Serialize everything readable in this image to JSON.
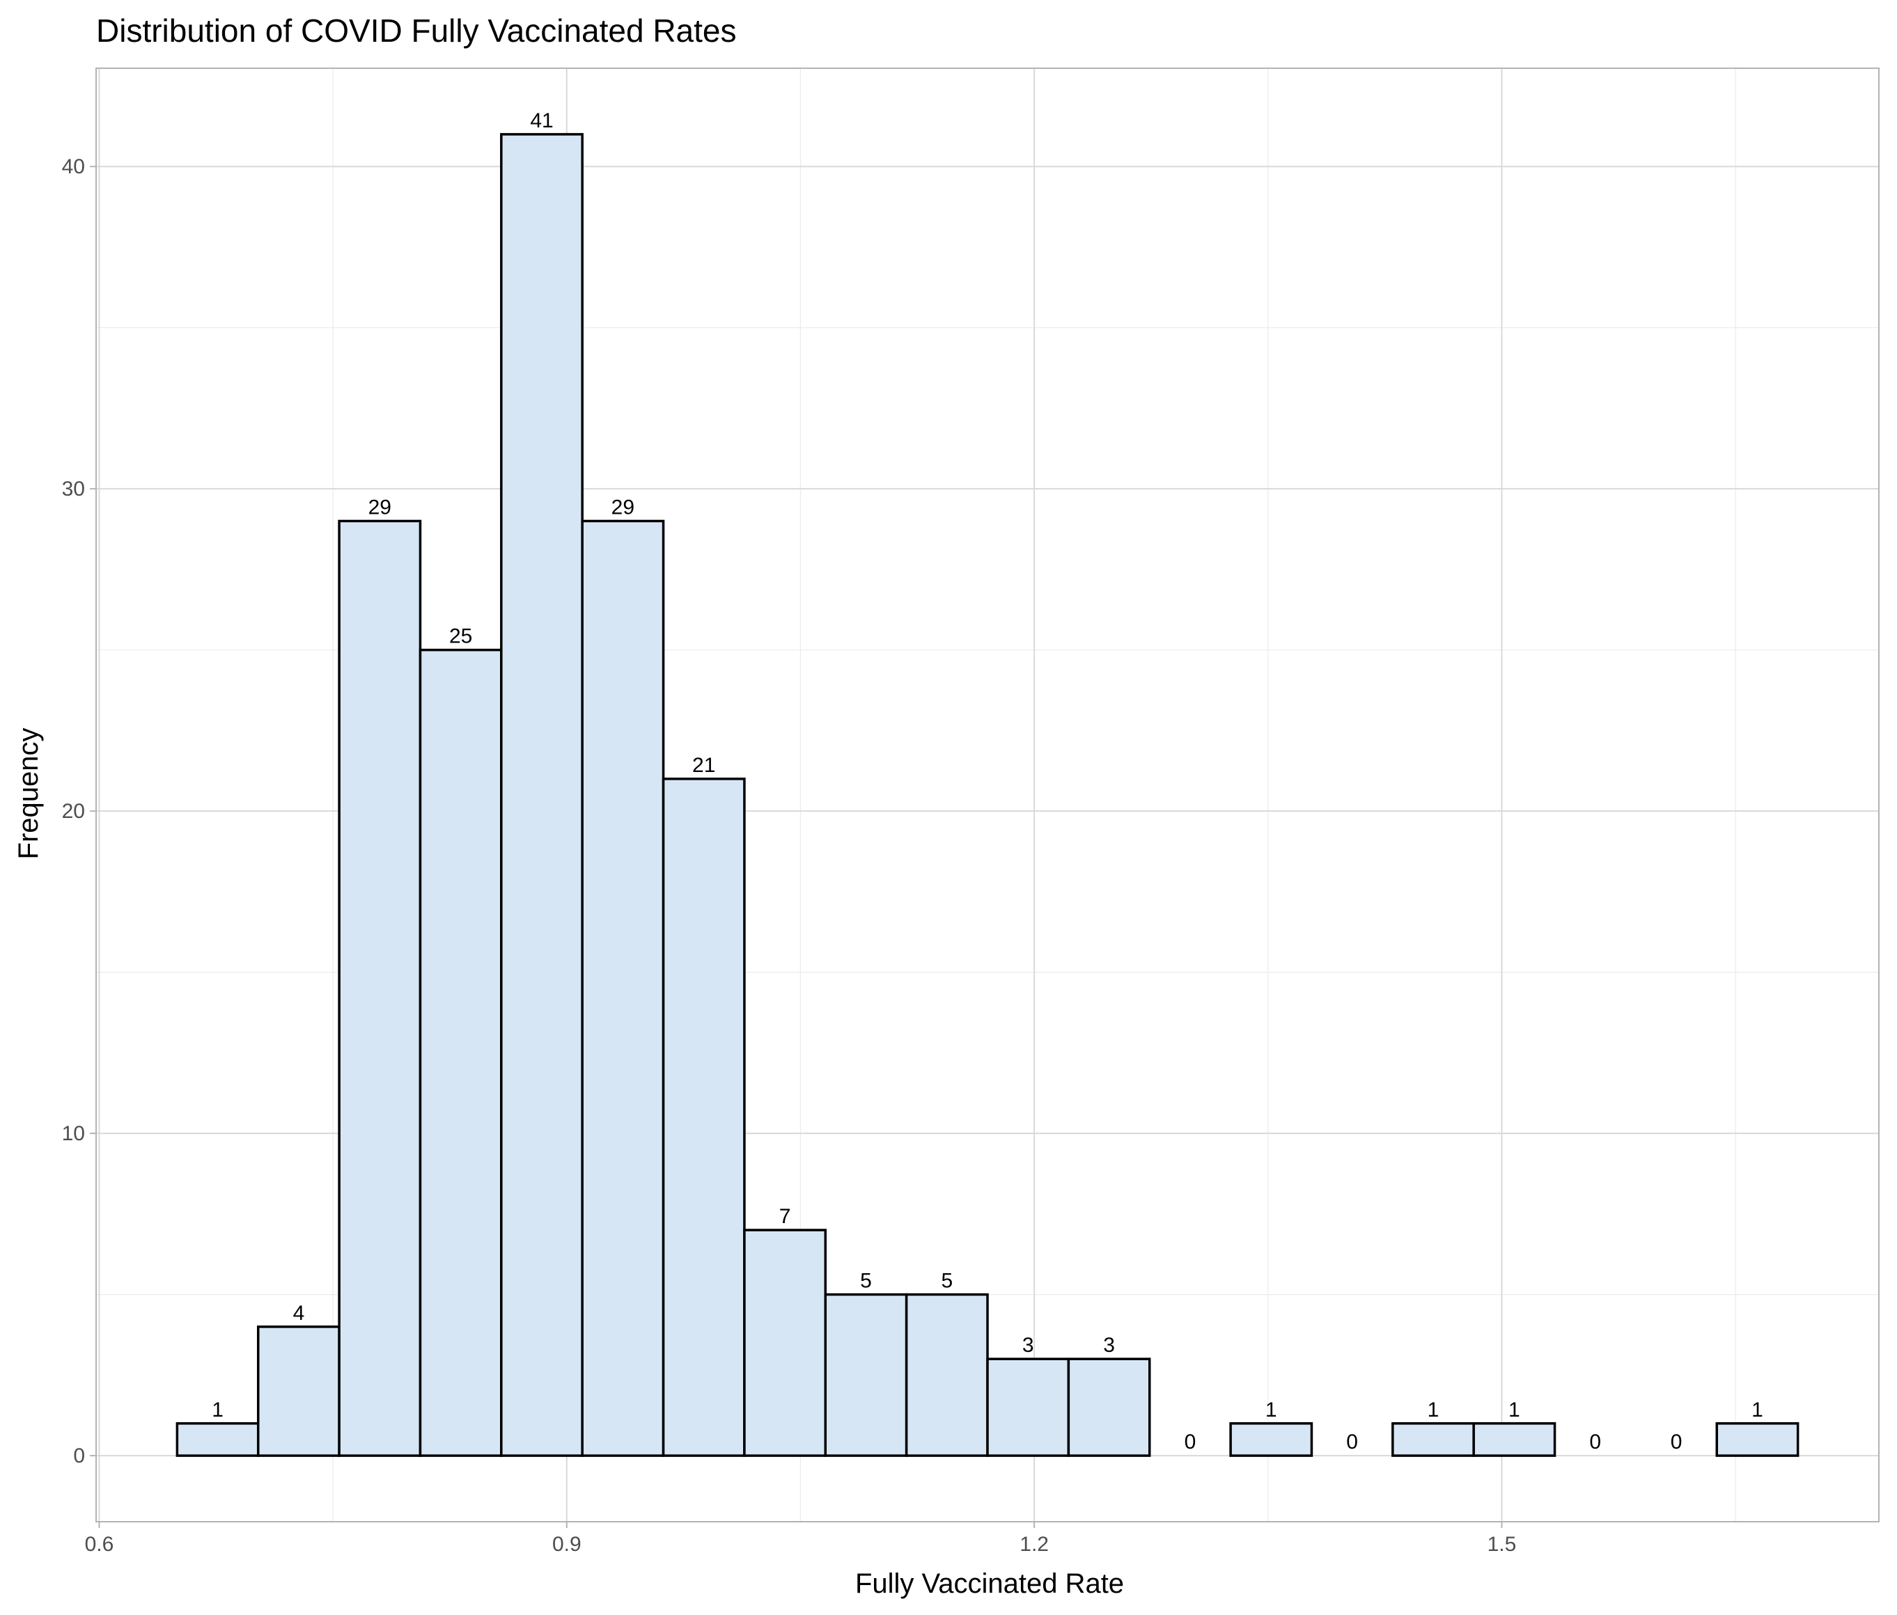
{
  "chart_data": {
    "type": "bar",
    "title": "Distribution of COVID Fully Vaccinated Rates",
    "xlabel": "Fully Vaccinated Rate",
    "ylabel": "Frequency",
    "bin_width": 0.052,
    "bins": [
      {
        "x0": 0.65,
        "x1": 0.702,
        "count": 1
      },
      {
        "x0": 0.702,
        "x1": 0.754,
        "count": 4
      },
      {
        "x0": 0.754,
        "x1": 0.806,
        "count": 29
      },
      {
        "x0": 0.806,
        "x1": 0.858,
        "count": 25
      },
      {
        "x0": 0.858,
        "x1": 0.91,
        "count": 41
      },
      {
        "x0": 0.91,
        "x1": 0.962,
        "count": 29
      },
      {
        "x0": 0.962,
        "x1": 1.014,
        "count": 21
      },
      {
        "x0": 1.014,
        "x1": 1.066,
        "count": 7
      },
      {
        "x0": 1.066,
        "x1": 1.118,
        "count": 5
      },
      {
        "x0": 1.118,
        "x1": 1.17,
        "count": 5
      },
      {
        "x0": 1.17,
        "x1": 1.222,
        "count": 3
      },
      {
        "x0": 1.222,
        "x1": 1.274,
        "count": 3
      },
      {
        "x0": 1.274,
        "x1": 1.326,
        "count": 0
      },
      {
        "x0": 1.326,
        "x1": 1.378,
        "count": 1
      },
      {
        "x0": 1.378,
        "x1": 1.43,
        "count": 0
      },
      {
        "x0": 1.43,
        "x1": 1.482,
        "count": 1
      },
      {
        "x0": 1.482,
        "x1": 1.534,
        "count": 1
      },
      {
        "x0": 1.534,
        "x1": 1.586,
        "count": 0
      },
      {
        "x0": 1.586,
        "x1": 1.638,
        "count": 0
      },
      {
        "x0": 1.638,
        "x1": 1.69,
        "count": 1
      }
    ],
    "xlim": [
      0.598,
      1.742
    ],
    "ylim": [
      -2.05,
      43.05
    ],
    "x_ticks": [
      {
        "value": 0.6,
        "label": "0.6"
      },
      {
        "value": 0.9,
        "label": "0.9"
      },
      {
        "value": 1.2,
        "label": "1.2"
      },
      {
        "value": 1.5,
        "label": "1.5"
      }
    ],
    "x_minor": [
      0.75,
      1.05,
      1.35,
      1.65
    ],
    "y_ticks": [
      {
        "value": 0,
        "label": "0"
      },
      {
        "value": 10,
        "label": "10"
      },
      {
        "value": 20,
        "label": "20"
      },
      {
        "value": 30,
        "label": "30"
      },
      {
        "value": 40,
        "label": "40"
      }
    ],
    "y_minor": [
      5,
      15,
      25,
      35
    ],
    "grid": true,
    "legend": "none",
    "colors": {
      "bar_fill": "#d6e6f5",
      "bar_stroke": "#000000",
      "grid": "#d9d9d9"
    }
  }
}
